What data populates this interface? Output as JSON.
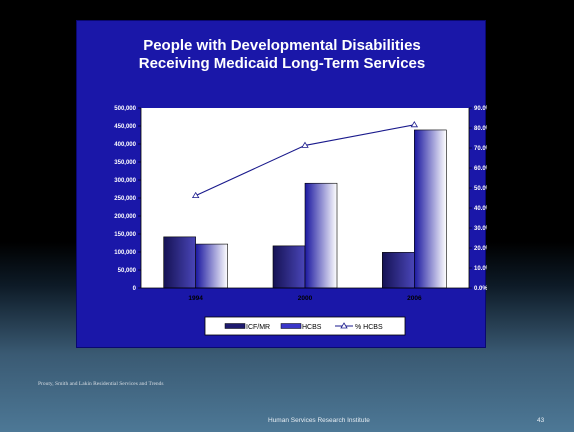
{
  "slide": {
    "source_note": "Prouty, Smith and Lakin Residential Services and Trends",
    "footer_org": "Human Services Research Institute",
    "slide_number": "43"
  },
  "colors": {
    "panel_bg": "#1a17a8",
    "plot_bg": "#ffffff",
    "bar_dark": "#1e1a6e",
    "bar_light": "#3a36c8",
    "line": "#1a1a8c"
  },
  "chart_data": {
    "type": "bar",
    "title_lines": [
      "People with Developmental Disabilities",
      "Receiving Medicaid Long-Term Services"
    ],
    "categories": [
      "1994",
      "2000",
      "2006"
    ],
    "series": [
      {
        "name": "ICF/MR",
        "type": "bar",
        "axis": "left",
        "values": [
          142000,
          117000,
          99000
        ]
      },
      {
        "name": "HCBS",
        "type": "bar",
        "axis": "left",
        "values": [
          122000,
          291000,
          439000
        ]
      },
      {
        "name": "% HCBS",
        "type": "line",
        "axis": "right",
        "values": [
          46.2,
          71.3,
          81.6
        ]
      }
    ],
    "y_left": {
      "min": 0,
      "max": 500000,
      "ticks": [
        "0",
        "50,000",
        "100,000",
        "150,000",
        "200,000",
        "250,000",
        "300,000",
        "350,000",
        "400,000",
        "450,000",
        "500,000"
      ]
    },
    "y_right": {
      "min": 0,
      "max": 90,
      "ticks": [
        "0.0%",
        "10.0%",
        "20.0%",
        "30.0%",
        "40.0%",
        "50.0%",
        "60.0%",
        "70.0%",
        "80.0%",
        "90.0%"
      ]
    },
    "legend_position": "bottom",
    "grid": false
  }
}
